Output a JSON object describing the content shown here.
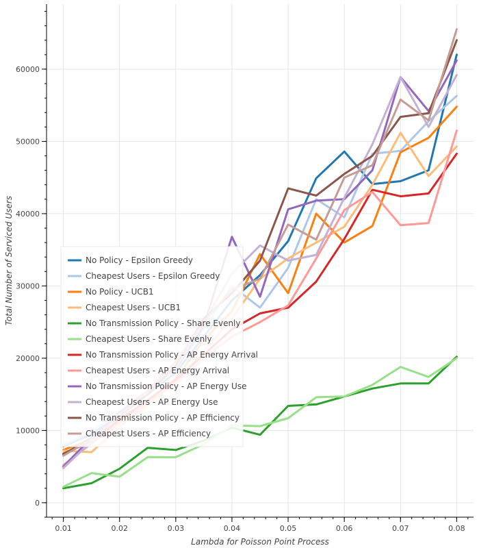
{
  "chart_data": {
    "type": "line",
    "xlabel": "Lambda for Poisson Point Process",
    "ylabel": "Total Number of Serviced Users",
    "xlim": [
      0.007,
      0.083
    ],
    "ylim": [
      -2000,
      69000
    ],
    "x_ticks": [
      0.01,
      0.02,
      0.03,
      0.04,
      0.05,
      0.06,
      0.07,
      0.08
    ],
    "x_tick_labels": [
      "0.01",
      "0.02",
      "0.03",
      "0.04",
      "0.05",
      "0.06",
      "0.07",
      "0.08"
    ],
    "y_ticks": [
      0,
      10000,
      20000,
      30000,
      40000,
      50000,
      60000
    ],
    "y_tick_labels": [
      "0",
      "10000",
      "20000",
      "30000",
      "40000",
      "50000",
      "60000"
    ],
    "grid": true,
    "legend_position": "middle-left",
    "x": [
      0.01,
      0.015,
      0.02,
      0.025,
      0.03,
      0.035,
      0.04,
      0.045,
      0.05,
      0.055,
      0.06,
      0.065,
      0.07,
      0.075,
      0.08
    ],
    "series": [
      {
        "name": "No Policy - Epsilon Greedy",
        "color": "#1f77b4",
        "values": [
          7800,
          9500,
          12000,
          15000,
          18000,
          23000,
          28000,
          31500,
          36200,
          44900,
          48600,
          44100,
          44500,
          46000,
          62000
        ]
      },
      {
        "name": "Cheapest Users - Epsilon Greedy",
        "color": "#aec7e8",
        "values": [
          8000,
          9800,
          12500,
          15500,
          18500,
          24000,
          30000,
          27000,
          32500,
          42000,
          39500,
          48300,
          48700,
          52800,
          56300
        ]
      },
      {
        "name": "No Policy - UCB1",
        "color": "#ff7f0e",
        "values": [
          7300,
          8800,
          11200,
          14000,
          17200,
          22500,
          26500,
          34400,
          29000,
          40000,
          36000,
          38300,
          48500,
          50500,
          54800
        ]
      },
      {
        "name": "Cheapest Users - UCB1",
        "color": "#ffbb78",
        "values": [
          7200,
          7000,
          10500,
          13500,
          16800,
          21000,
          25500,
          31000,
          33800,
          36000,
          38200,
          44000,
          51200,
          45200,
          49300
        ]
      },
      {
        "name": "No Transmission Policy - Share Evenly",
        "color": "#2ca02c",
        "values": [
          2000,
          2700,
          4700,
          7600,
          7300,
          8600,
          10400,
          9400,
          13400,
          13600,
          14700,
          15800,
          16500,
          16500,
          20200
        ]
      },
      {
        "name": "Cheapest Users - Share Evenly",
        "color": "#98df8a",
        "values": [
          2200,
          4100,
          3600,
          6300,
          6300,
          8100,
          10700,
          10600,
          11700,
          14600,
          14700,
          16300,
          18800,
          17400,
          20000
        ]
      },
      {
        "name": "No Transmission Policy - AP Energy Arrival",
        "color": "#d62728",
        "values": [
          6800,
          8500,
          11500,
          14200,
          17000,
          20500,
          24000,
          26200,
          27000,
          30600,
          36500,
          43300,
          42400,
          42800,
          48300
        ]
      },
      {
        "name": "Cheapest Users - AP Energy Arrival",
        "color": "#ff9896",
        "values": [
          5200,
          8200,
          11000,
          13800,
          16500,
          20000,
          23000,
          25000,
          27300,
          33800,
          40500,
          43000,
          38400,
          38700,
          51500
        ]
      },
      {
        "name": "No Transmission Policy - AP Energy Use",
        "color": "#9467bd",
        "values": [
          5000,
          9000,
          12500,
          15500,
          18500,
          24500,
          36800,
          28500,
          40600,
          41800,
          42000,
          46000,
          58900,
          54200,
          61200
        ]
      },
      {
        "name": "Cheapest Users - AP Energy Use",
        "color": "#c5b0d5",
        "values": [
          4800,
          8500,
          12000,
          15000,
          18800,
          25000,
          31700,
          35600,
          33500,
          34300,
          42200,
          49600,
          58900,
          52000,
          59200
        ]
      },
      {
        "name": "No Transmission Policy - AP Efficiency",
        "color": "#8c564b",
        "values": [
          6700,
          9000,
          12000,
          15000,
          19000,
          25500,
          29000,
          33500,
          43500,
          42500,
          45500,
          48000,
          53400,
          53900,
          64000
        ]
      },
      {
        "name": "Cheapest Users - AP Efficiency",
        "color": "#c49c94",
        "values": [
          6500,
          8800,
          12000,
          15500,
          19500,
          25000,
          29500,
          31000,
          38500,
          36400,
          45000,
          46700,
          55800,
          52900,
          65500
        ]
      }
    ]
  }
}
